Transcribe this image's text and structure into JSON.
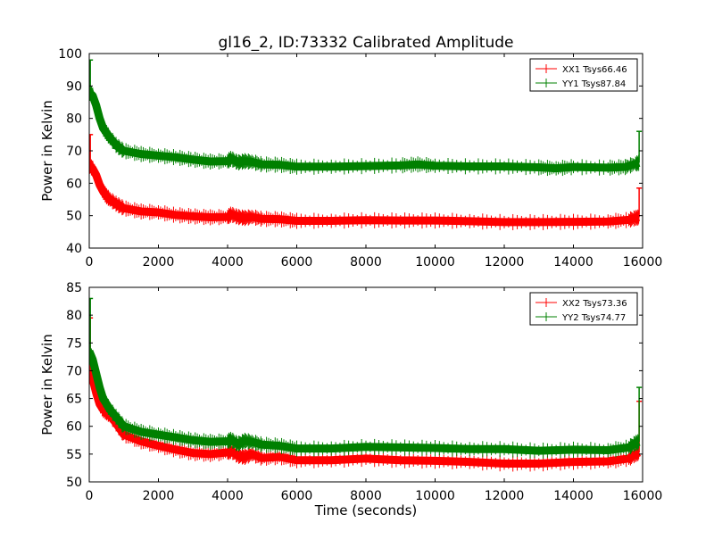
{
  "title": "gl16_2, ID:73332 Calibrated Amplitude",
  "chart_data": [
    {
      "type": "line",
      "title": "gl16_2, ID:73332 Calibrated Amplitude",
      "xlabel": "",
      "ylabel": "Power in Kelvin",
      "xlim": [
        0,
        16000
      ],
      "ylim": [
        40,
        100
      ],
      "xticks": [
        "0",
        "2000",
        "4000",
        "6000",
        "8000",
        "10000",
        "12000",
        "14000",
        "16000"
      ],
      "yticks": [
        "40",
        "50",
        "60",
        "70",
        "80",
        "90",
        "100"
      ],
      "grid": false,
      "legend_position": "top-right",
      "series": [
        {
          "name": "XX1 Tsys66.46",
          "color": "#ff0000",
          "x": [
            0,
            100,
            200,
            300,
            400,
            500,
            600,
            800,
            1000,
            1500,
            2000,
            2500,
            3000,
            3500,
            4000,
            4100,
            4300,
            4500,
            4700,
            5000,
            5500,
            6000,
            7000,
            8000,
            9000,
            10000,
            11000,
            12000,
            13000,
            14000,
            15000,
            15600,
            15800,
            15900
          ],
          "y": [
            65.5,
            64.5,
            62.5,
            59.5,
            57.5,
            56,
            55,
            53.5,
            52.3,
            51.3,
            51,
            50.2,
            49.8,
            49.5,
            49.6,
            50.4,
            49.6,
            49.3,
            49.6,
            49,
            48.9,
            48.4,
            48.4,
            48.6,
            48.5,
            48.5,
            48.3,
            48,
            48,
            48.1,
            48.2,
            48.7,
            49.3,
            49.5
          ],
          "outliers": [
            {
              "x": 30,
              "y": 75
            },
            {
              "x": 15900,
              "y": 58.5
            }
          ]
        },
        {
          "name": "YY1 Tsys87.84",
          "color": "#008000",
          "x": [
            0,
            100,
            200,
            300,
            400,
            500,
            600,
            800,
            1000,
            1500,
            2000,
            2500,
            3000,
            3500,
            4000,
            4100,
            4300,
            4500,
            4700,
            5000,
            5500,
            6000,
            7000,
            8000,
            9000,
            9500,
            10000,
            11000,
            12000,
            13000,
            13500,
            14000,
            15000,
            15500,
            15800,
            15900
          ],
          "y": [
            88,
            87,
            84,
            80,
            77,
            75.5,
            74,
            71.5,
            70,
            69,
            68.5,
            68,
            67.3,
            66.7,
            66.8,
            67.6,
            66.4,
            66.8,
            66.6,
            65.8,
            65.7,
            65.1,
            65.1,
            65.3,
            65.5,
            65.8,
            65.4,
            65.2,
            65.2,
            64.9,
            64.6,
            65,
            64.8,
            65,
            66,
            66.3
          ],
          "outliers": [
            {
              "x": 30,
              "y": 98
            },
            {
              "x": 15900,
              "y": 76
            }
          ]
        }
      ]
    },
    {
      "type": "line",
      "title": "",
      "xlabel": "Time (seconds)",
      "ylabel": "Power in Kelvin",
      "xlim": [
        0,
        16000
      ],
      "ylim": [
        50,
        85
      ],
      "xticks": [
        "0",
        "2000",
        "4000",
        "6000",
        "8000",
        "10000",
        "12000",
        "14000",
        "16000"
      ],
      "yticks": [
        "50",
        "55",
        "60",
        "65",
        "70",
        "75",
        "80",
        "85"
      ],
      "grid": false,
      "legend_position": "top-right",
      "series": [
        {
          "name": "XX2 Tsys73.36",
          "color": "#ff0000",
          "x": [
            0,
            100,
            200,
            300,
            400,
            500,
            600,
            800,
            1000,
            1500,
            2000,
            2500,
            3000,
            3500,
            4000,
            4100,
            4300,
            4500,
            4700,
            5000,
            5500,
            6000,
            7000,
            8000,
            9000,
            10000,
            11000,
            12000,
            13000,
            14000,
            15000,
            15600,
            15800,
            15900
          ],
          "y": [
            71,
            68.5,
            66,
            64,
            63,
            62.5,
            62,
            60.3,
            58.5,
            57.3,
            56.5,
            55.8,
            55.2,
            55,
            55.3,
            55.6,
            54.7,
            54.5,
            55,
            54.3,
            54.5,
            53.9,
            53.9,
            54.2,
            53.9,
            53.8,
            53.6,
            53.3,
            53.3,
            53.6,
            53.7,
            54.2,
            55,
            55.3
          ],
          "outliers": [
            {
              "x": 30,
              "y": 79.5
            },
            {
              "x": 15900,
              "y": 64.5
            }
          ]
        },
        {
          "name": "YY2 Tsys74.77",
          "color": "#008000",
          "x": [
            0,
            100,
            200,
            300,
            400,
            500,
            600,
            800,
            1000,
            1500,
            2000,
            2500,
            3000,
            3500,
            4000,
            4100,
            4300,
            4500,
            4700,
            5000,
            5500,
            6000,
            7000,
            8000,
            9000,
            10000,
            11000,
            12000,
            13000,
            14000,
            15000,
            15600,
            15800,
            15900
          ],
          "y": [
            73.5,
            72,
            69.5,
            67,
            65,
            64,
            63,
            61.5,
            60,
            59,
            58.5,
            58,
            57.5,
            57.2,
            57.3,
            57.6,
            56.8,
            57.4,
            57.2,
            56.7,
            56.5,
            56,
            56,
            56.3,
            56.2,
            56.1,
            55.9,
            55.9,
            55.6,
            55.8,
            55.7,
            56.2,
            57,
            57.2
          ],
          "outliers": [
            {
              "x": 30,
              "y": 83
            },
            {
              "x": 15900,
              "y": 67
            }
          ]
        }
      ]
    }
  ]
}
